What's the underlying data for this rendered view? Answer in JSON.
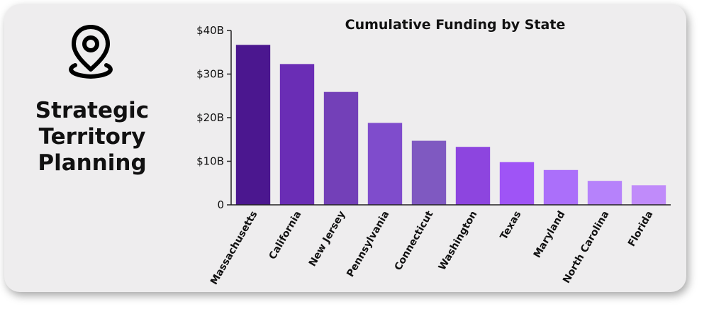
{
  "panel": {
    "icon": "location-pin-icon",
    "title_lines": [
      "Strategic",
      "Territory",
      "Planning"
    ]
  },
  "chart_data": {
    "type": "bar",
    "title": "Cumulative Funding by State",
    "xlabel": "",
    "ylabel": "",
    "categories": [
      "Massachusetts",
      "California",
      "New Jersey",
      "Pennsylvania",
      "Connecticut",
      "Washington",
      "Texas",
      "Maryland",
      "North Carolina",
      "Florida"
    ],
    "values": [
      36.7,
      32.3,
      25.9,
      18.8,
      14.7,
      13.3,
      9.8,
      8.0,
      5.5,
      4.5
    ],
    "ylim": [
      0,
      40
    ],
    "yticks": [
      0,
      10,
      20,
      30,
      40
    ],
    "ytick_labels": [
      "0",
      "$10B",
      "$20B",
      "$30B",
      "$40B"
    ],
    "colors": [
      "#4b178f",
      "#6a2db5",
      "#7340b8",
      "#7f4ccc",
      "#7f59c1",
      "#8d45df",
      "#9f54f6",
      "#ab6ffa",
      "#b682fb",
      "#c08bfa"
    ],
    "grid": false
  }
}
